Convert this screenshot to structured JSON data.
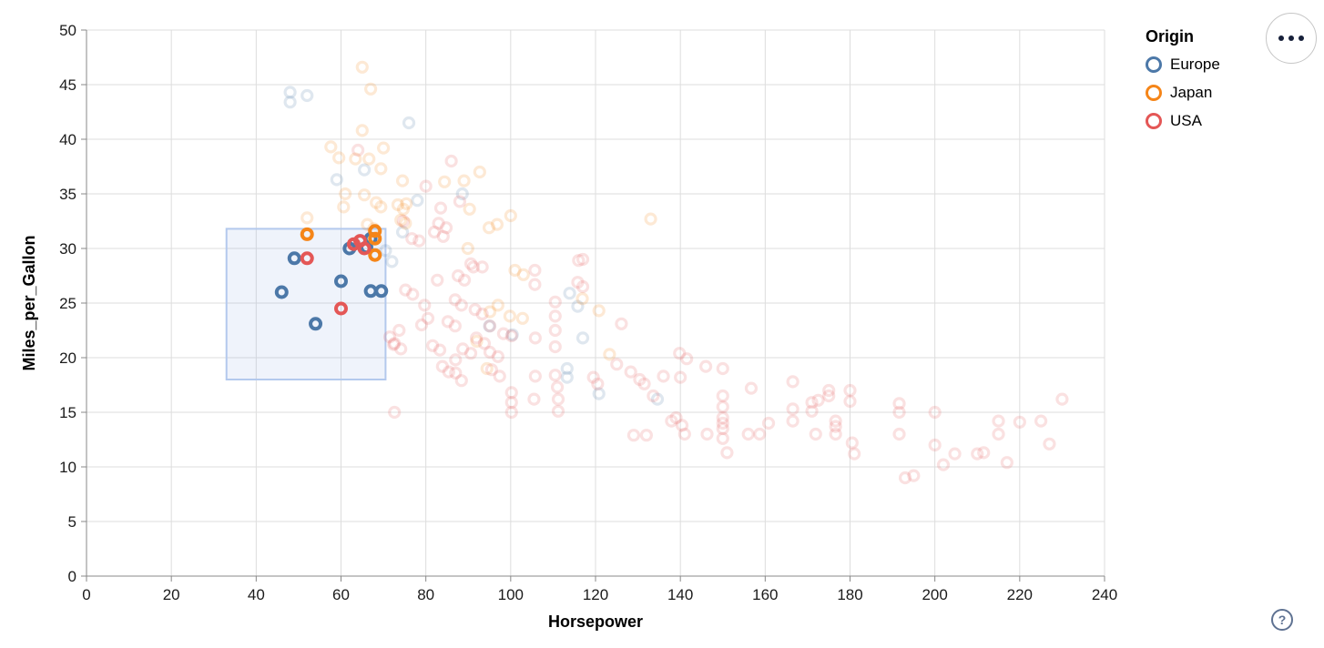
{
  "page": {
    "background": "#ffffff"
  },
  "legend": {
    "title": "Origin",
    "items": [
      {
        "label": "Europe",
        "color": "#4c78a8"
      },
      {
        "label": "Japan",
        "color": "#f58518"
      },
      {
        "label": "USA",
        "color": "#e45756"
      }
    ]
  },
  "controls": {
    "menu_button_icon": "more-options",
    "help_button_label": "?"
  },
  "chart_data": {
    "type": "scatter",
    "title": "",
    "xlabel": "Horsepower",
    "ylabel": "Miles_per_Gallon",
    "xlim": [
      0,
      240
    ],
    "ylim": [
      0,
      50
    ],
    "x_ticks": [
      0,
      20,
      40,
      60,
      80,
      100,
      120,
      140,
      160,
      180,
      200,
      220,
      240
    ],
    "y_ticks": [
      0,
      5,
      10,
      15,
      20,
      25,
      30,
      35,
      40,
      45,
      50
    ],
    "grid": true,
    "legend_position": "top-right",
    "point_shape": "ring",
    "unselected_opacity": 0.18,
    "brush": {
      "x": [
        33,
        70.5
      ],
      "y": [
        18,
        31.8
      ],
      "fill": "rgba(120,160,220,0.12)",
      "stroke": "#b3c9ed"
    },
    "series": [
      {
        "name": "Europe",
        "color": "#4c78a8",
        "selected": [
          [
            46,
            26
          ],
          [
            49,
            29.1
          ],
          [
            54,
            23.1
          ],
          [
            60,
            27
          ],
          [
            62,
            30
          ],
          [
            66,
            30.1
          ],
          [
            67,
            30.9
          ],
          [
            67,
            26.1
          ],
          [
            69.5,
            26.1
          ]
        ],
        "points": [
          [
            48,
            44.3
          ],
          [
            52,
            44
          ],
          [
            48,
            43.4
          ],
          [
            76,
            41.5
          ],
          [
            59,
            36.3
          ],
          [
            65.5,
            37.2
          ],
          [
            78,
            34.4
          ],
          [
            88.6,
            35
          ],
          [
            74.5,
            31.5
          ],
          [
            70.5,
            29.8
          ],
          [
            72,
            28.8
          ],
          [
            95,
            22.9
          ],
          [
            100.4,
            22.1
          ],
          [
            113.9,
            25.9
          ],
          [
            115.8,
            24.7
          ],
          [
            117,
            21.8
          ],
          [
            113.3,
            19
          ],
          [
            113.3,
            18.2
          ],
          [
            120.8,
            16.7
          ],
          [
            134.6,
            16.2
          ]
        ]
      },
      {
        "name": "Japan",
        "color": "#f58518",
        "selected": [
          [
            52,
            31.3
          ],
          [
            68,
            31.6
          ],
          [
            68,
            30.9
          ],
          [
            68,
            29.4
          ]
        ],
        "points": [
          [
            65,
            46.6
          ],
          [
            67,
            44.6
          ],
          [
            65,
            40.8
          ],
          [
            57.6,
            39.3
          ],
          [
            59.5,
            38.3
          ],
          [
            63.4,
            38.2
          ],
          [
            70,
            39.2
          ],
          [
            66.6,
            38.2
          ],
          [
            69.4,
            37.3
          ],
          [
            92.7,
            37
          ],
          [
            74.5,
            36.2
          ],
          [
            84.4,
            36.1
          ],
          [
            89,
            36.2
          ],
          [
            61,
            35
          ],
          [
            65.5,
            34.9
          ],
          [
            68.3,
            34.2
          ],
          [
            75.4,
            34.1
          ],
          [
            60.6,
            33.8
          ],
          [
            69.4,
            33.8
          ],
          [
            73.4,
            34
          ],
          [
            74.7,
            33.6
          ],
          [
            90.3,
            33.6
          ],
          [
            100,
            33
          ],
          [
            133,
            32.7
          ],
          [
            94.9,
            31.9
          ],
          [
            96.8,
            32.2
          ],
          [
            74.1,
            32.6
          ],
          [
            75.2,
            32.3
          ],
          [
            67.7,
            31.8
          ],
          [
            66.2,
            32.2
          ],
          [
            52,
            32.8
          ],
          [
            89.9,
            30
          ],
          [
            101,
            28
          ],
          [
            103,
            27.6
          ],
          [
            97,
            24.8
          ],
          [
            95.1,
            24.2
          ],
          [
            99.8,
            23.8
          ],
          [
            102.8,
            23.6
          ],
          [
            116.9,
            25.4
          ],
          [
            120.8,
            24.3
          ],
          [
            123.3,
            20.3
          ],
          [
            94.4,
            19
          ],
          [
            92,
            21.5
          ]
        ]
      },
      {
        "name": "USA",
        "color": "#e45756",
        "selected": [
          [
            52,
            29.1
          ],
          [
            60,
            24.5
          ],
          [
            63,
            30.4
          ],
          [
            64.5,
            30.7
          ],
          [
            65.5,
            30
          ]
        ],
        "points": [
          [
            64,
            39
          ],
          [
            86,
            38
          ],
          [
            80,
            35.7
          ],
          [
            83.5,
            33.7
          ],
          [
            88,
            34.3
          ],
          [
            84.8,
            31.9
          ],
          [
            83,
            32.3
          ],
          [
            74.7,
            32.5
          ],
          [
            82,
            31.5
          ],
          [
            84.1,
            31.1
          ],
          [
            76.7,
            30.9
          ],
          [
            78.4,
            30.7
          ],
          [
            91.2,
            28.3
          ],
          [
            93.3,
            28.3
          ],
          [
            90.6,
            28.6
          ],
          [
            87.6,
            27.5
          ],
          [
            89.1,
            27.1
          ],
          [
            82.7,
            27.1
          ],
          [
            75.2,
            26.2
          ],
          [
            76.9,
            25.8
          ],
          [
            79.7,
            24.8
          ],
          [
            86.9,
            25.3
          ],
          [
            88.4,
            24.8
          ],
          [
            91.6,
            24.4
          ],
          [
            93.3,
            24
          ],
          [
            95.1,
            22.9
          ],
          [
            98.3,
            22.2
          ],
          [
            91.9,
            21.8
          ],
          [
            93.8,
            21.3
          ],
          [
            86.9,
            22.9
          ],
          [
            85.2,
            23.3
          ],
          [
            80.5,
            23.6
          ],
          [
            79,
            23
          ],
          [
            73.7,
            22.5
          ],
          [
            74.1,
            20.8
          ],
          [
            72.4,
            21.2
          ],
          [
            71.5,
            21.9
          ],
          [
            72.6,
            21.3
          ],
          [
            81.6,
            21.1
          ],
          [
            83.3,
            20.7
          ],
          [
            88.7,
            20.8
          ],
          [
            90.6,
            20.4
          ],
          [
            95.1,
            20.5
          ],
          [
            97,
            20.1
          ],
          [
            105.8,
            21.8
          ],
          [
            100.2,
            22
          ],
          [
            83.9,
            19.2
          ],
          [
            85.4,
            18.7
          ],
          [
            88.4,
            17.9
          ],
          [
            87,
            19.8
          ],
          [
            87,
            18.6
          ],
          [
            95.5,
            18.9
          ],
          [
            97.4,
            18.3
          ],
          [
            105.8,
            18.3
          ],
          [
            110.5,
            18.4
          ],
          [
            111,
            17.3
          ],
          [
            111.2,
            16.2
          ],
          [
            111.2,
            15.1
          ],
          [
            100.2,
            16.8
          ],
          [
            100.2,
            15.9
          ],
          [
            100.2,
            15
          ],
          [
            105.5,
            16.2
          ],
          [
            119.5,
            18.2
          ],
          [
            120.5,
            17.6
          ],
          [
            125,
            19.4
          ],
          [
            128.3,
            18.7
          ],
          [
            129,
            12.9
          ],
          [
            132,
            12.9
          ],
          [
            130.4,
            18
          ],
          [
            131.5,
            17.6
          ],
          [
            133.6,
            16.5
          ],
          [
            126.1,
            23.1
          ],
          [
            117,
            29
          ],
          [
            117,
            26.5
          ],
          [
            116,
            28.9
          ],
          [
            115.8,
            26.9
          ],
          [
            105.7,
            28
          ],
          [
            105.7,
            26.7
          ],
          [
            110.5,
            25.1
          ],
          [
            110.5,
            23.8
          ],
          [
            110.5,
            22.5
          ],
          [
            110.5,
            21
          ],
          [
            72.6,
            15
          ],
          [
            139.8,
            20.4
          ],
          [
            141.5,
            19.9
          ],
          [
            146,
            19.2
          ],
          [
            136,
            18.3
          ],
          [
            140,
            18.2
          ],
          [
            137.9,
            14.2
          ],
          [
            140.4,
            13.8
          ],
          [
            141,
            13
          ],
          [
            146.3,
            13
          ],
          [
            139,
            14.5
          ],
          [
            150,
            19
          ],
          [
            150,
            16.5
          ],
          [
            150,
            15.5
          ],
          [
            150,
            14.5
          ],
          [
            150,
            14
          ],
          [
            150,
            13.5
          ],
          [
            150,
            12.6
          ],
          [
            151,
            11.3
          ],
          [
            156.7,
            17.2
          ],
          [
            158.7,
            13
          ],
          [
            156,
            13
          ],
          [
            160.8,
            14
          ],
          [
            166.5,
            17.8
          ],
          [
            166.5,
            15.3
          ],
          [
            166.5,
            14.2
          ],
          [
            171,
            15.9
          ],
          [
            171,
            15.1
          ],
          [
            171.9,
            13
          ],
          [
            172.5,
            16.1
          ],
          [
            175,
            16.5
          ],
          [
            175,
            17
          ],
          [
            180,
            17
          ],
          [
            180,
            16
          ],
          [
            180.5,
            12.2
          ],
          [
            181,
            11.2
          ],
          [
            176.6,
            14.2
          ],
          [
            176.6,
            13.7
          ],
          [
            176.6,
            13
          ],
          [
            191.6,
            15.8
          ],
          [
            191.6,
            15
          ],
          [
            191.6,
            13
          ],
          [
            200,
            15
          ],
          [
            200,
            12
          ],
          [
            193,
            9
          ],
          [
            195,
            9.2
          ],
          [
            202,
            10.2
          ],
          [
            204.7,
            11.2
          ],
          [
            211.5,
            11.3
          ],
          [
            210,
            11.2
          ],
          [
            217,
            10.4
          ],
          [
            215,
            14.2
          ],
          [
            220,
            14.1
          ],
          [
            225,
            14.2
          ],
          [
            215,
            13
          ],
          [
            227,
            12.1
          ],
          [
            230,
            16.2
          ]
        ]
      }
    ]
  }
}
